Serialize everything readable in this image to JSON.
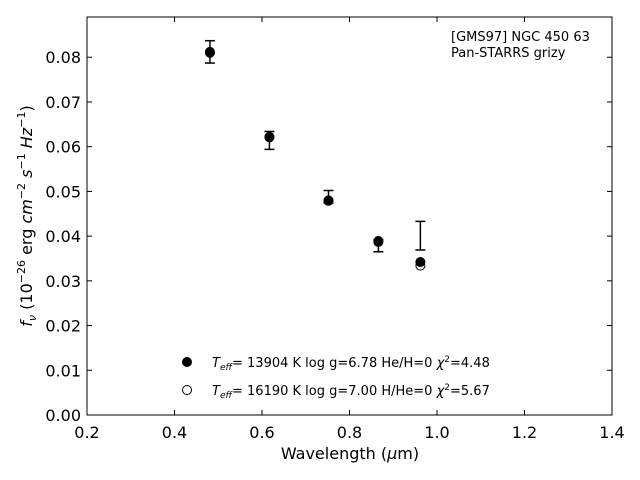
{
  "chart_data": {
    "type": "scatter",
    "xlabel": "Wavelength (μm)",
    "ylabel": "f_ν (10^-26 erg cm^-2 s^-1 Hz^-1)",
    "xlim": [
      0.2,
      1.4
    ],
    "ylim": [
      0.0,
      0.089
    ],
    "xticks": [
      "0.2",
      "0.4",
      "0.6",
      "0.8",
      "1.0",
      "1.2",
      "1.4"
    ],
    "yticks": [
      "0.00",
      "0.01",
      "0.02",
      "0.03",
      "0.04",
      "0.05",
      "0.06",
      "0.07",
      "0.08"
    ],
    "annotation": [
      "[GMS97] NGC 450 63",
      "Pan-STARRS grizy"
    ],
    "grid": false,
    "legend_position": "bottom-center",
    "observed": {
      "x": [
        0.481,
        0.617,
        0.752,
        0.866,
        0.962
      ],
      "y": [
        0.0812,
        0.0614,
        0.0483,
        0.0388,
        0.0402
      ],
      "yerr_low": [
        0.0025,
        0.002,
        0.0009,
        0.0023,
        0.0033
      ],
      "yerr_high": [
        0.0025,
        0.002,
        0.0019,
        0.0004,
        0.0031
      ]
    },
    "series": [
      {
        "legend": "T_eff= 13904 K  log g=6.78  He/H=0  χ^2=4.48",
        "marker": "filled-circle",
        "x": [
          0.481,
          0.617,
          0.752,
          0.866,
          0.962
        ],
        "y": [
          0.081,
          0.0621,
          0.048,
          0.0389,
          0.0342
        ]
      },
      {
        "legend": "T_eff= 16190 K  log g=7.00  H/He=0  χ^2=5.67",
        "marker": "open-circle",
        "x": [
          0.481,
          0.617,
          0.752,
          0.866,
          0.962
        ],
        "y": [
          0.0812,
          0.0622,
          0.0479,
          0.0387,
          0.0334
        ]
      }
    ]
  }
}
